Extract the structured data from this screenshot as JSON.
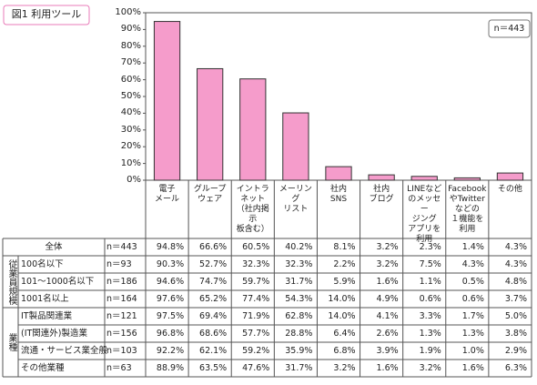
{
  "chart_data": {
    "type": "bar",
    "title": "図1 利用ツール",
    "note": "n＝443",
    "categories": [
      "電子\nメール",
      "グループ\nウェア",
      "イントラ\nネット\n（社内掲示\n板含む）",
      "メーリング\nリスト",
      "社内\nSNS",
      "社内\nブログ",
      "LINEなど\nのメッセー\nジング\nアプリを\n利用",
      "Facebook\nやTwitter\nなどの\n１機能を\n利用",
      "その他"
    ],
    "values": [
      94.8,
      66.6,
      60.5,
      40.2,
      8.1,
      3.2,
      2.3,
      1.4,
      4.3
    ],
    "value_labels": [
      "94.8%",
      "66.6%",
      "60.5%",
      "40.2%",
      "8.1%",
      "3.2%",
      "2.3%",
      "1.4%",
      "4.3%"
    ],
    "color": "#f59ccb",
    "ylim": [
      0,
      100
    ],
    "yticks": [
      {
        "value": 0,
        "label": "0%"
      },
      {
        "value": 10,
        "label": "10%"
      },
      {
        "value": 20,
        "label": "20%"
      },
      {
        "value": 30,
        "label": "30%"
      },
      {
        "value": 40,
        "label": "40%"
      },
      {
        "value": 50,
        "label": "50%"
      },
      {
        "value": 60,
        "label": "60%"
      },
      {
        "value": 70,
        "label": "70%"
      },
      {
        "value": 80,
        "label": "80%"
      },
      {
        "value": 90,
        "label": "90%"
      },
      {
        "value": 100,
        "label": "100%"
      }
    ],
    "grid": false
  },
  "table": {
    "total": {
      "label": "全体",
      "n": "n＝443"
    },
    "groups": [
      {
        "label": "従業員規模",
        "rows": [
          {
            "label": "100名以下",
            "n": "n＝93",
            "cells": [
              "90.3%",
              "52.7%",
              "32.3%",
              "32.3%",
              "2.2%",
              "3.2%",
              "7.5%",
              "4.3%",
              "4.3%"
            ]
          },
          {
            "label": "101～1000名以下",
            "n": "n＝186",
            "cells": [
              "94.6%",
              "74.7%",
              "59.7%",
              "31.7%",
              "5.9%",
              "1.6%",
              "1.1%",
              "0.5%",
              "4.8%"
            ]
          },
          {
            "label": "1001名以上",
            "n": "n＝164",
            "cells": [
              "97.6%",
              "65.2%",
              "77.4%",
              "54.3%",
              "14.0%",
              "4.9%",
              "0.6%",
              "0.6%",
              "3.7%"
            ]
          }
        ]
      },
      {
        "label": "業種",
        "rows": [
          {
            "label": "IT製品関連業",
            "n": "n＝121",
            "cells": [
              "97.5%",
              "69.4%",
              "71.9%",
              "62.8%",
              "14.0%",
              "4.1%",
              "3.3%",
              "1.7%",
              "5.0%"
            ]
          },
          {
            "label": "(IT関連外)製造業",
            "n": "n＝156",
            "cells": [
              "96.8%",
              "68.6%",
              "57.7%",
              "28.8%",
              "6.4%",
              "2.6%",
              "1.3%",
              "1.3%",
              "3.8%"
            ]
          },
          {
            "label": "流通・サービス業全般",
            "n": "n＝103",
            "cells": [
              "92.2%",
              "62.1%",
              "59.2%",
              "35.9%",
              "6.8%",
              "3.9%",
              "1.9%",
              "1.0%",
              "2.9%"
            ]
          },
          {
            "label": "その他業種",
            "n": "n＝63",
            "cells": [
              "88.9%",
              "63.5%",
              "47.6%",
              "31.7%",
              "3.2%",
              "1.6%",
              "3.2%",
              "1.6%",
              "6.3%"
            ]
          }
        ]
      }
    ]
  }
}
